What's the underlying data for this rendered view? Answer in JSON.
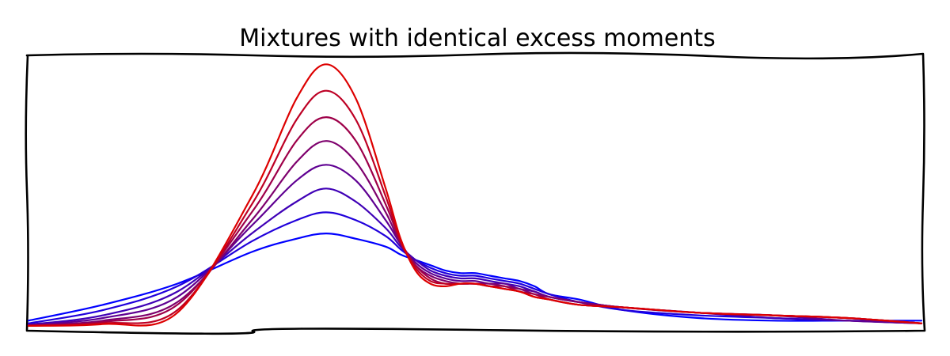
{
  "chart_data": {
    "type": "line",
    "title": "Mixtures with identical excess moments",
    "xlabel": "",
    "ylabel": "",
    "xlim": [
      -3,
      3
    ],
    "ylim": [
      0,
      1
    ],
    "axes_visible": false,
    "grid": false,
    "style": "hand-drawn (xkcd)",
    "color_gradient": {
      "start": "#0000ff",
      "end": "#dd0000"
    },
    "x": [
      -3.0,
      -2.5,
      -2.0,
      -1.5,
      -1.2,
      -1.0,
      -0.8,
      -0.6,
      -0.5,
      -0.4,
      -0.3,
      -0.2,
      -0.1,
      0.0,
      0.1,
      0.2,
      0.3,
      0.4,
      0.5,
      0.7,
      1.0,
      1.5,
      2.0,
      2.5,
      3.0
    ],
    "series": [
      {
        "values": [
          0.02,
          0.08,
          0.16,
          0.28,
          0.33,
          0.35,
          0.33,
          0.3,
          0.27,
          0.25,
          0.23,
          0.21,
          0.2,
          0.2,
          0.19,
          0.18,
          0.17,
          0.15,
          0.12,
          0.1,
          0.06,
          0.03,
          0.02,
          0.02,
          0.02
        ]
      },
      {
        "values": [
          0.01,
          0.06,
          0.15,
          0.32,
          0.4,
          0.43,
          0.4,
          0.34,
          0.29,
          0.25,
          0.22,
          0.2,
          0.19,
          0.19,
          0.18,
          0.17,
          0.16,
          0.14,
          0.12,
          0.09,
          0.06,
          0.04,
          0.03,
          0.02,
          0.01
        ]
      },
      {
        "values": [
          0.005,
          0.04,
          0.13,
          0.35,
          0.47,
          0.52,
          0.47,
          0.37,
          0.3,
          0.25,
          0.21,
          0.19,
          0.18,
          0.18,
          0.17,
          0.16,
          0.15,
          0.13,
          0.11,
          0.09,
          0.07,
          0.05,
          0.03,
          0.02,
          0.01
        ]
      },
      {
        "values": [
          0.003,
          0.03,
          0.11,
          0.38,
          0.55,
          0.61,
          0.55,
          0.4,
          0.31,
          0.24,
          0.2,
          0.18,
          0.17,
          0.17,
          0.16,
          0.16,
          0.14,
          0.13,
          0.11,
          0.09,
          0.07,
          0.05,
          0.04,
          0.02,
          0.01
        ]
      },
      {
        "values": [
          0.002,
          0.02,
          0.09,
          0.4,
          0.62,
          0.7,
          0.62,
          0.43,
          0.31,
          0.23,
          0.19,
          0.17,
          0.16,
          0.16,
          0.16,
          0.15,
          0.14,
          0.12,
          0.11,
          0.09,
          0.07,
          0.05,
          0.04,
          0.03,
          0.01
        ]
      },
      {
        "values": [
          0.001,
          0.015,
          0.08,
          0.43,
          0.7,
          0.79,
          0.7,
          0.46,
          0.32,
          0.23,
          0.18,
          0.16,
          0.16,
          0.16,
          0.15,
          0.15,
          0.13,
          0.12,
          0.1,
          0.08,
          0.07,
          0.05,
          0.04,
          0.03,
          0.01
        ]
      },
      {
        "values": [
          0.0005,
          0.01,
          0.06,
          0.46,
          0.78,
          0.89,
          0.78,
          0.49,
          0.32,
          0.22,
          0.17,
          0.16,
          0.16,
          0.16,
          0.15,
          0.14,
          0.13,
          0.11,
          0.1,
          0.08,
          0.07,
          0.05,
          0.04,
          0.03,
          0.01
        ]
      },
      {
        "values": [
          0.0003,
          0.007,
          0.05,
          0.49,
          0.86,
          0.99,
          0.86,
          0.52,
          0.33,
          0.21,
          0.16,
          0.15,
          0.16,
          0.16,
          0.15,
          0.14,
          0.13,
          0.11,
          0.1,
          0.08,
          0.07,
          0.05,
          0.04,
          0.03,
          0.01
        ]
      }
    ]
  }
}
